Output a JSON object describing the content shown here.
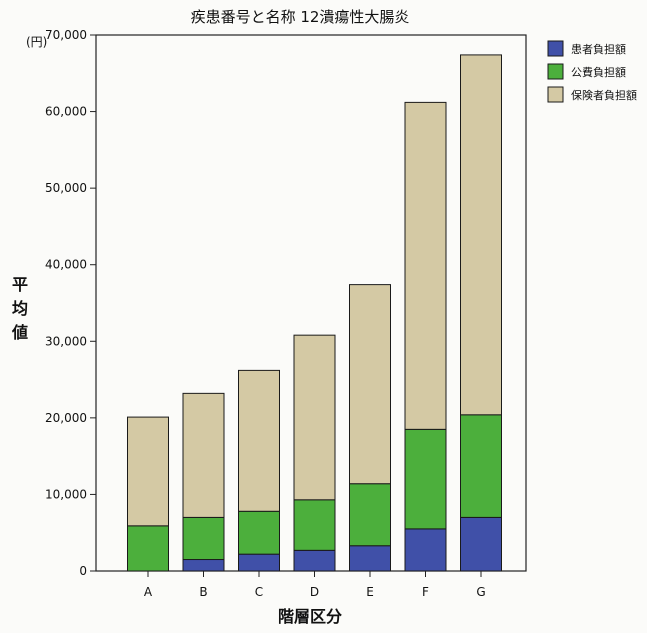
{
  "chart_data": {
    "type": "bar",
    "stacked": true,
    "title": "疾患番号と名称 12潰瘍性大腸炎",
    "ylabel": "平均値",
    "yunit": "(円)",
    "xlabel": "階層区分",
    "categories": [
      "A",
      "B",
      "C",
      "D",
      "E",
      "F",
      "G"
    ],
    "ylim": [
      0,
      70000
    ],
    "yticks": [
      0,
      10000,
      20000,
      30000,
      40000,
      50000,
      60000,
      70000
    ],
    "ytick_labels": [
      "0",
      "10,000",
      "20,000",
      "30,000",
      "40,000",
      "50,000",
      "60,000",
      "70,000"
    ],
    "legend_position": "top-right",
    "series": [
      {
        "name": "患者負担額",
        "color": "#4050a8",
        "values": [
          0,
          1500,
          2200,
          2700,
          3300,
          5500,
          7000
        ]
      },
      {
        "name": "公費負担額",
        "color": "#4caf3c",
        "values": [
          5900,
          5500,
          5600,
          6600,
          8100,
          13000,
          13400
        ]
      },
      {
        "name": "保険者負担額",
        "color": "#d4c9a4",
        "values": [
          14200,
          16200,
          18400,
          21500,
          26000,
          42700,
          47000
        ]
      }
    ]
  }
}
